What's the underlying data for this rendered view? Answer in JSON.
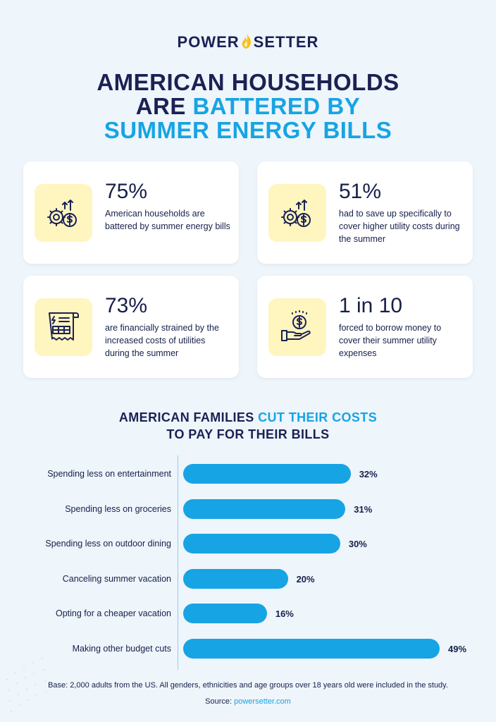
{
  "logo": {
    "left": "POWER",
    "right": "SETTER"
  },
  "title": {
    "line1": "AMERICAN HOUSEHOLDS",
    "line2_dark": "ARE ",
    "line2_blue": "BATTERED BY",
    "line3_blue": "SUMMER ENERGY BILLS"
  },
  "stats": [
    {
      "value": "75%",
      "text": "American households are battered by summer energy bills",
      "icon": "gear-dollar-icon"
    },
    {
      "value": "51%",
      "text": "had to save up specifically to cover higher utility costs during the summer",
      "icon": "gear-dollar-icon"
    },
    {
      "value": "73%",
      "text": "are financially strained by the increased costs of utilities during the summer",
      "icon": "utility-bill-icon"
    },
    {
      "value": "1 in 10",
      "text": "forced to borrow money to cover their summer utility expenses",
      "icon": "hand-coin-icon"
    }
  ],
  "section": {
    "dark1": "AMERICAN FAMILIES ",
    "blue": "CUT THEIR COSTS",
    "line2": "TO PAY FOR THEIR BILLS"
  },
  "chart_data": {
    "type": "bar",
    "orientation": "horizontal",
    "title": "AMERICAN FAMILIES CUT THEIR COSTS TO PAY FOR THEIR BILLS",
    "categories": [
      "Spending less on entertainment",
      "Spending less on groceries",
      "Spending less on outdoor dining",
      "Canceling summer vacation",
      "Opting for a cheaper vacation",
      "Making other budget cuts"
    ],
    "values": [
      32,
      31,
      30,
      20,
      16,
      49
    ],
    "value_labels": [
      "32%",
      "31%",
      "30%",
      "20%",
      "16%",
      "49%"
    ],
    "unit": "%",
    "xlim": [
      0,
      49
    ],
    "color": "#17a4e4"
  },
  "footer": {
    "base": "Base: 2,000 adults from the US. All genders, ethnicities and age groups over 18 years old were included in the study.",
    "source_label": "Source: ",
    "source_link": "powersetter.com"
  },
  "colors": {
    "navy": "#1b2153",
    "accent": "#17a4e4",
    "icon_bg": "#fff5bf"
  }
}
